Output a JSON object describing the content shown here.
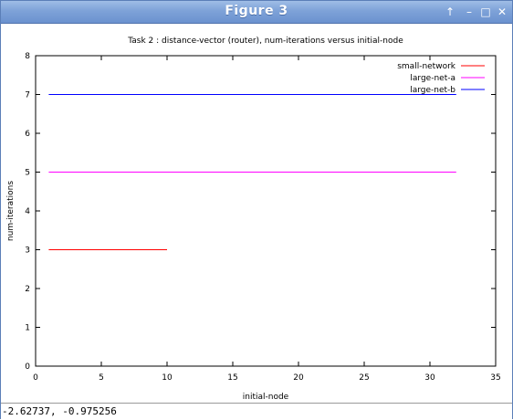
{
  "window": {
    "title": "Figure 3"
  },
  "titlebar_buttons": [
    {
      "name": "up-arrow-icon",
      "glyph": "↑"
    },
    {
      "name": "minimize-icon",
      "glyph": "–"
    },
    {
      "name": "maximize-icon",
      "glyph": "□"
    },
    {
      "name": "close-icon",
      "glyph": "✕"
    }
  ],
  "status": {
    "coordinates": "-2.62737, -0.975256"
  },
  "chart_data": {
    "type": "line",
    "title": "Task 2 : distance-vector (router), num-iterations versus initial-node",
    "xlabel": "initial-node",
    "ylabel": "num-iterations",
    "xlim": [
      0,
      35
    ],
    "ylim": [
      0,
      8
    ],
    "xticks": [
      0,
      5,
      10,
      15,
      20,
      25,
      30,
      35
    ],
    "yticks": [
      0,
      1,
      2,
      3,
      4,
      5,
      6,
      7,
      8
    ],
    "grid": false,
    "legend_position": "top-right",
    "series": [
      {
        "name": "small-network",
        "color": "#ff0000",
        "x": [
          1,
          10
        ],
        "y": [
          3,
          3
        ]
      },
      {
        "name": "large-net-a",
        "color": "#ff00ff",
        "x": [
          1,
          32
        ],
        "y": [
          5,
          5
        ]
      },
      {
        "name": "large-net-b",
        "color": "#0000ff",
        "x": [
          1,
          32
        ],
        "y": [
          7,
          7
        ]
      }
    ]
  }
}
